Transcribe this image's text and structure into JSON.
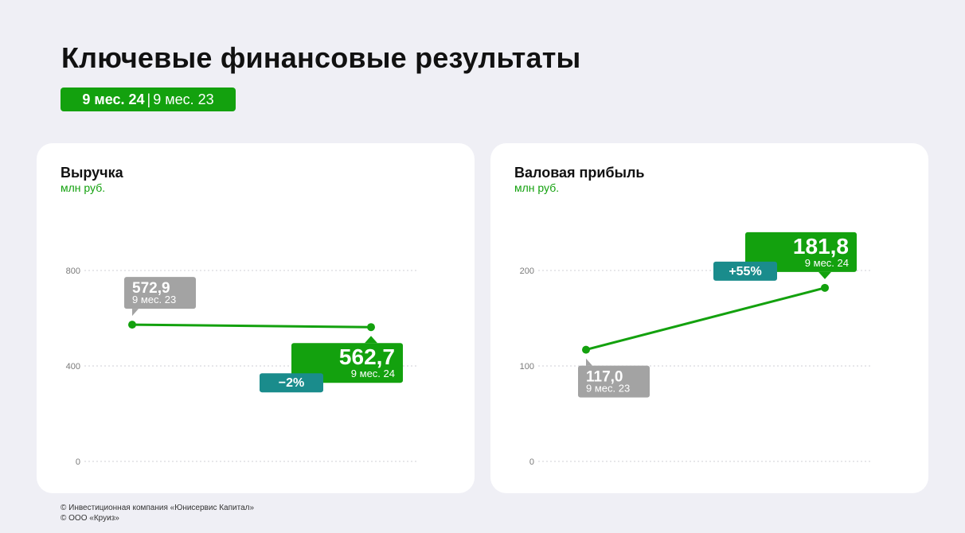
{
  "header": {
    "title": "Ключевые финансовые результаты",
    "period_current": "9 мес. 24",
    "period_separator": "|",
    "period_previous": "9 мес. 23"
  },
  "colors": {
    "accent": "#13a10e",
    "previous": "#a3a3a3",
    "change_badge": "#1a8c8c",
    "background": "#efeff5"
  },
  "chart_data": [
    {
      "type": "line",
      "title": "Выручка",
      "ylabel": "млн руб.",
      "ylim": [
        0,
        800
      ],
      "yticks": [
        {
          "value": 0,
          "label": "0"
        },
        {
          "value": 400,
          "label": "400"
        },
        {
          "value": 800,
          "label": "800"
        }
      ],
      "grid": true,
      "x": [
        "9 мес. 23",
        "9 мес. 24"
      ],
      "values": [
        572.9,
        562.7
      ],
      "value_labels": [
        "572,9",
        "562,7"
      ],
      "period_labels": [
        "9 мес. 23",
        "9 мес. 24"
      ],
      "change": "−2%"
    },
    {
      "type": "line",
      "title": "Валовая прибыль",
      "ylabel": "млн руб.",
      "ylim": [
        0,
        200
      ],
      "yticks": [
        {
          "value": 0,
          "label": "0"
        },
        {
          "value": 100,
          "label": "100"
        },
        {
          "value": 200,
          "label": "200"
        }
      ],
      "grid": true,
      "x": [
        "9 мес. 23",
        "9 мес. 24"
      ],
      "values": [
        117.0,
        181.8
      ],
      "value_labels": [
        "117,0",
        "181,8"
      ],
      "period_labels": [
        "9 мес. 23",
        "9 мес. 24"
      ],
      "change": "+55%"
    }
  ],
  "footer": {
    "line1": "© Инвестиционная компания «Юнисервис Капитал»",
    "line2": "© ООО «Круиз»"
  }
}
